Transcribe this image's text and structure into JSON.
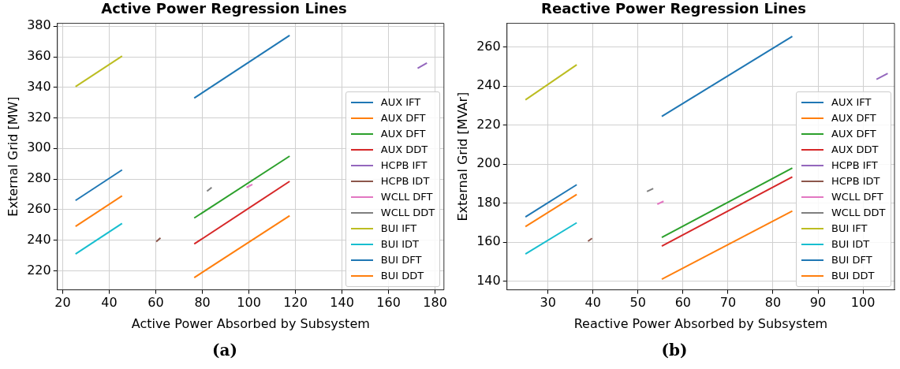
{
  "chart_data": [
    {
      "type": "line",
      "title": "Active Power Regression Lines",
      "xlabel": "Active Power Absorbed by Subsystem",
      "ylabel": "External Grid [MW]",
      "xlim": [
        17.7,
        183.8
      ],
      "xticks": [
        20,
        40,
        60,
        80,
        100,
        120,
        140,
        160,
        180
      ],
      "ylim": [
        207.5,
        381.9
      ],
      "yticks": [
        220,
        240,
        260,
        280,
        300,
        320,
        340,
        360,
        380
      ],
      "grid": true,
      "legend": "bottom right",
      "line_style": "solid",
      "annotations": [
        "(a)"
      ],
      "series": [
        {
          "name": "AUX IFT",
          "color": "#1f77b4",
          "x": [
            76.5,
            117.5
          ],
          "values": [
            333,
            374
          ]
        },
        {
          "name": "AUX DFT",
          "color": "#ff7f0e",
          "x": [
            76.5,
            117.5
          ],
          "values": [
            215.5,
            256
          ]
        },
        {
          "name": "AUX DFT",
          "color": "#2ca02c",
          "x": [
            76.5,
            117.5
          ],
          "values": [
            254.5,
            295
          ]
        },
        {
          "name": "AUX DDT",
          "color": "#d62728",
          "x": [
            76.5,
            117.5
          ],
          "values": [
            237.5,
            278.5
          ]
        },
        {
          "name": "HCPB IFT",
          "color": "#9467bd",
          "x": [
            172.5,
            176.5
          ],
          "values": [
            352.5,
            356
          ]
        },
        {
          "name": "HCPB IDT",
          "color": "#8c564b",
          "x": [
            60.2,
            62
          ],
          "values": [
            239,
            241.5
          ]
        },
        {
          "name": "WCLL DFT",
          "color": "#e377c2",
          "x": [
            99,
            101.5
          ],
          "values": [
            274.5,
            276.5
          ]
        },
        {
          "name": "WCLL DDT",
          "color": "#7f7f7f",
          "x": [
            82,
            84
          ],
          "values": [
            272,
            274.5
          ]
        },
        {
          "name": "BUI IFT",
          "color": "#bcbd22",
          "x": [
            25.5,
            45.5
          ],
          "values": [
            340.5,
            360.5
          ]
        },
        {
          "name": "BUI IDT",
          "color": "#17becf",
          "x": [
            25.5,
            45.5
          ],
          "values": [
            231,
            251
          ]
        },
        {
          "name": "BUI DFT",
          "color": "#1f77b4",
          "x": [
            25.5,
            45.5
          ],
          "values": [
            266,
            286
          ]
        },
        {
          "name": "BUI DDT",
          "color": "#ff7f0e",
          "x": [
            25.5,
            45.5
          ],
          "values": [
            249,
            269
          ]
        }
      ]
    },
    {
      "type": "line",
      "title": "Reactive Power Regression Lines",
      "xlabel": "Reactive Power Absorbed by Subsystem",
      "ylabel": "External Grid [MVAr]",
      "xlim": [
        20.9,
        107
      ],
      "xticks": [
        30,
        40,
        50,
        60,
        70,
        80,
        90,
        100
      ],
      "ylim": [
        135.6,
        272.2
      ],
      "yticks": [
        140,
        160,
        180,
        200,
        220,
        240,
        260
      ],
      "grid": true,
      "legend": "bottom right",
      "line_style": "solid",
      "annotations": [
        "(b)"
      ],
      "series": [
        {
          "name": "AUX IFT",
          "color": "#1f77b4",
          "x": [
            55.3,
            84.3
          ],
          "values": [
            224.5,
            265.5
          ]
        },
        {
          "name": "AUX DFT",
          "color": "#ff7f0e",
          "x": [
            55.3,
            84.3
          ],
          "values": [
            141,
            176
          ]
        },
        {
          "name": "AUX DFT",
          "color": "#2ca02c",
          "x": [
            55.3,
            84.3
          ],
          "values": [
            162.5,
            198
          ]
        },
        {
          "name": "AUX DDT",
          "color": "#d62728",
          "x": [
            55.3,
            84.3
          ],
          "values": [
            158,
            193.5
          ]
        },
        {
          "name": "HCPB IFT",
          "color": "#9467bd",
          "x": [
            103,
            105.5
          ],
          "values": [
            243.5,
            246.5
          ]
        },
        {
          "name": "HCPB IDT",
          "color": "#8c564b",
          "x": [
            38.9,
            39.8
          ],
          "values": [
            160.5,
            162
          ]
        },
        {
          "name": "WCLL DFT",
          "color": "#e377c2",
          "x": [
            54.3,
            55.7
          ],
          "values": [
            179.5,
            181
          ]
        },
        {
          "name": "WCLL DDT",
          "color": "#7f7f7f",
          "x": [
            52,
            53.4
          ],
          "values": [
            186,
            187.5
          ]
        },
        {
          "name": "BUI IFT",
          "color": "#bcbd22",
          "x": [
            25,
            36.4
          ],
          "values": [
            233,
            251
          ]
        },
        {
          "name": "BUI IDT",
          "color": "#17becf",
          "x": [
            25,
            36.4
          ],
          "values": [
            154,
            170
          ]
        },
        {
          "name": "BUI DFT",
          "color": "#1f77b4",
          "x": [
            25,
            36.4
          ],
          "values": [
            173,
            189.5
          ]
        },
        {
          "name": "BUI DDT",
          "color": "#ff7f0e",
          "x": [
            25,
            36.4
          ],
          "values": [
            168,
            184.5
          ]
        }
      ]
    }
  ]
}
